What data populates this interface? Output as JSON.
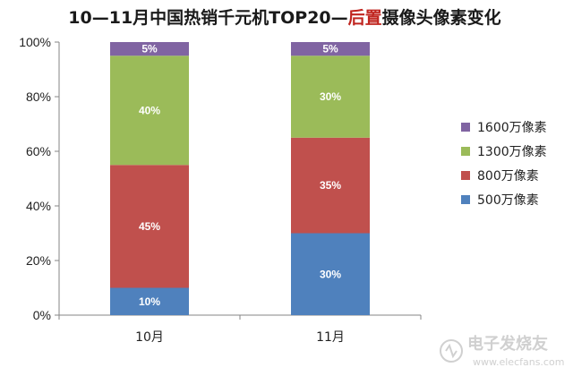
{
  "chart_data": {
    "type": "bar",
    "stacked": true,
    "title_parts": [
      {
        "text": "10—11月中国热销千元机TOP20—",
        "emphasis": false
      },
      {
        "text": "后置",
        "emphasis": true
      },
      {
        "text": "摄像头像素变化",
        "emphasis": false
      }
    ],
    "categories": [
      "10月",
      "11月"
    ],
    "series": [
      {
        "name": "500万像素",
        "color": "#4f81bd",
        "values": [
          10,
          30
        ],
        "labels": [
          "10%",
          "30%"
        ]
      },
      {
        "name": "800万像素",
        "color": "#c0504d",
        "values": [
          45,
          35
        ],
        "labels": [
          "45%",
          "35%"
        ]
      },
      {
        "name": "1300万像素",
        "color": "#9bbb59",
        "values": [
          40,
          30
        ],
        "labels": [
          "40%",
          "30%"
        ]
      },
      {
        "name": "1600万像素",
        "color": "#8064a2",
        "values": [
          5,
          5
        ],
        "labels": [
          "5%",
          "5%"
        ]
      }
    ],
    "ylim": [
      0,
      100
    ],
    "yticks": [
      {
        "value": 0,
        "label": "0%"
      },
      {
        "value": 20,
        "label": "20%"
      },
      {
        "value": 40,
        "label": "40%"
      },
      {
        "value": 60,
        "label": "60%"
      },
      {
        "value": 80,
        "label": "80%"
      },
      {
        "value": 100,
        "label": "100%"
      }
    ],
    "grid": false,
    "legend": "right",
    "legend_order": [
      "1600万像素",
      "1300万像素",
      "800万像素",
      "500万像素"
    ]
  },
  "watermark": {
    "text": "电子发烧友",
    "url": "www.elecfans.com"
  }
}
